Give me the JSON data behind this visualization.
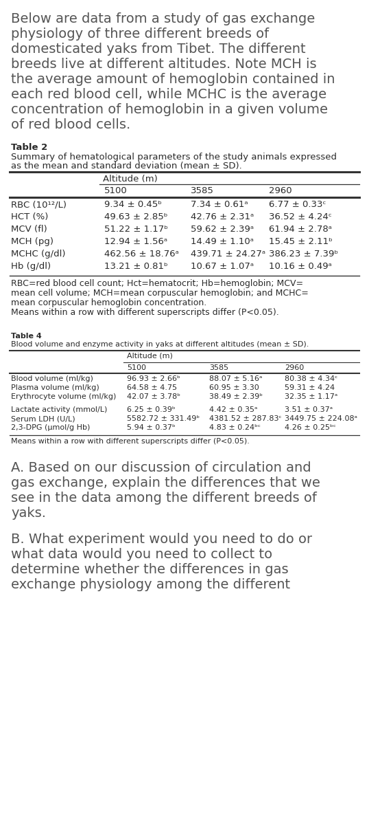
{
  "intro_lines": [
    "Below are data from a study of gas exchange",
    "physiology of three different breeds of",
    "domesticated yaks from Tibet. The different",
    "breeds live at different altitudes. Note MCH is",
    "the average amount of hemoglobin contained in",
    "each red blood cell, while MCHC is the average",
    "concentration of hemoglobin in a given volume",
    "of red blood cells."
  ],
  "table2_title": "Table 2",
  "table2_subtitle1": "Summary of hematological parameters of the study animals expressed",
  "table2_subtitle2": "as the mean and standard deviation (mean ± SD).",
  "table2_alt_header": "Altitude (m)",
  "table2_col_headers": [
    "5100",
    "3585",
    "2960"
  ],
  "table2_rows": [
    [
      "RBC (10¹²/L)",
      "9.34 ± 0.45ᵇ",
      "7.34 ± 0.61ᵃ",
      "6.77 ± 0.33ᶜ"
    ],
    [
      "HCT (%)",
      "49.63 ± 2.85ᵇ",
      "42.76 ± 2.31ᵃ",
      "36.52 ± 4.24ᶜ"
    ],
    [
      "MCV (fl)",
      "51.22 ± 1.17ᵇ",
      "59.62 ± 2.39ᵃ",
      "61.94 ± 2.78ᵃ"
    ],
    [
      "MCH (pg)",
      "12.94 ± 1.56ᵃ",
      "14.49 ± 1.10ᵃ",
      "15.45 ± 2.11ᵇ"
    ],
    [
      "MCHC (g/dl)",
      "462.56 ± 18.76ᵃ",
      "439.71 ± 24.27ᵃ",
      "386.23 ± 7.39ᵇ"
    ],
    [
      "Hb (g/dl)",
      "13.21 ± 0.81ᵇ",
      "10.67 ± 1.07ᵃ",
      "10.16 ± 0.49ᵃ"
    ]
  ],
  "table2_fn1": "RBC=red blood cell count; Hct=hematocrit; Hb=hemoglobin; MCV=",
  "table2_fn2": "mean cell volume; MCH=mean corpuscular hemoglobin; and MCHC=",
  "table2_fn3": "mean corpuscular hemoglobin concentration.",
  "table2_fn4": "Means within a row with different superscripts differ (P<0.05).",
  "table4_title": "Table 4",
  "table4_subtitle": "Blood volume and enzyme activity in yaks at different altitudes (mean ± SD).",
  "table4_alt_header": "Altitude (m)",
  "table4_col_headers": [
    "5100",
    "3585",
    "2960"
  ],
  "table4_rows_grp1": [
    [
      "Blood volume (ml/kg)",
      "96.93 ± 2.66ᵇ",
      "88.07 ± 5.16ᵃ",
      "80.38 ± 4.34ᶜ"
    ],
    [
      "Plasma volume (ml/kg)",
      "64.58 ± 4.75",
      "60.95 ± 3.30",
      "59.31 ± 4.24"
    ],
    [
      "Erythrocyte volume (ml/kg)",
      "42.07 ± 3.78ᵇ",
      "38.49 ± 2.39ᵇ",
      "32.35 ± 1.17ᵃ"
    ]
  ],
  "table4_rows_grp2": [
    [
      "Lactate activity (mmol/L)",
      "6.25 ± 0.39ᵇ",
      "4.42 ± 0.35ᵃ",
      "3.51 ± 0.37ᵃ"
    ],
    [
      "Serum LDH (U/L)",
      "5582.72 ± 331.49ᵇ",
      "4381.52 ± 287.83ᶜ",
      "3449.75 ± 224.08ᵃ"
    ],
    [
      "2,3-DPG (μmol/g Hb)",
      "5.94 ± 0.37ᵇ",
      "4.83 ± 0.24ᵇᶜ",
      "4.26 ± 0.25ᵇᶜ"
    ]
  ],
  "table4_fn": "Means within a row with different superscripts differ (P<0.05).",
  "qa_lines": [
    "A. Based on our discussion of circulation and",
    "gas exchange, explain the differences that we",
    "see in the data among the different breeds of",
    "yaks."
  ],
  "qb_lines": [
    "B. What experiment would you need to do or",
    "what data would you need to collect to",
    "determine whether the differences in gas",
    "exchange physiology among the different"
  ],
  "bg_color": "#ffffff",
  "text_dark": "#2a2a2a",
  "text_mid": "#444444",
  "text_light": "#666666",
  "line_color": "#333333"
}
